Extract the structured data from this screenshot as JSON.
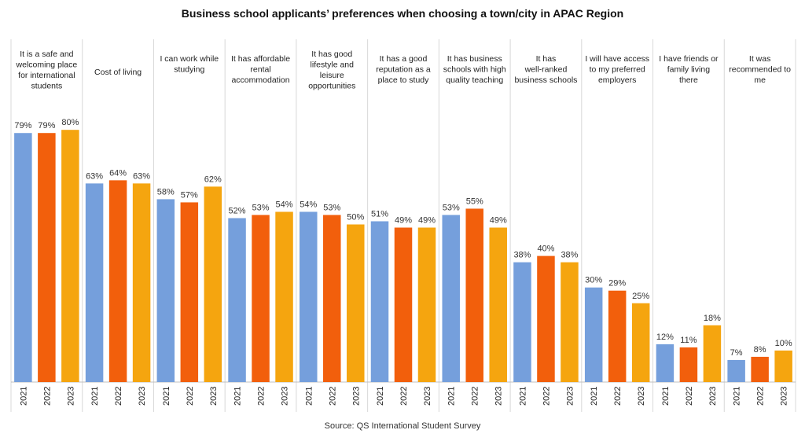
{
  "chart_data": {
    "type": "bar",
    "title": "Business school applicants’ preferences when choosing a town/city in APAC Region",
    "source": "Source: QS International Student Survey",
    "years": [
      "2021",
      "2022",
      "2023"
    ],
    "colors": {
      "2021": "#759fdc",
      "2022": "#f25f0c",
      "2023": "#f5a50f"
    },
    "ylim": [
      0,
      100
    ],
    "value_suffix": "%",
    "categories": [
      {
        "label": "It is a safe and welcoming place for international students",
        "lines": [
          "It is a safe and",
          "welcoming place",
          "for international",
          "students"
        ],
        "values": [
          79,
          79,
          80
        ]
      },
      {
        "label": "Cost of living",
        "lines": [
          "Cost of living"
        ],
        "values": [
          63,
          64,
          63
        ]
      },
      {
        "label": "I can work while studying",
        "lines": [
          "I can work while",
          "studying"
        ],
        "values": [
          58,
          57,
          62
        ]
      },
      {
        "label": "It has affordable rental accommodation",
        "lines": [
          "It has affordable",
          "rental",
          "accommodation"
        ],
        "values": [
          52,
          53,
          54
        ]
      },
      {
        "label": "It has good lifestyle and leisure opportunities",
        "lines": [
          "It has good",
          "lifestyle and",
          "leisure",
          "opportunities"
        ],
        "values": [
          54,
          53,
          50
        ]
      },
      {
        "label": "It has a good reputation as a place to study",
        "lines": [
          "It has a good",
          "reputation as a",
          "place to study"
        ],
        "values": [
          51,
          49,
          49
        ]
      },
      {
        "label": "It has business schools with high quality teaching",
        "lines": [
          "It has business",
          "schools with high",
          "quality teaching"
        ],
        "values": [
          53,
          55,
          49
        ]
      },
      {
        "label": "It has well-ranked business schools",
        "lines": [
          "It has",
          "well-ranked",
          "business schools"
        ],
        "values": [
          38,
          40,
          38
        ]
      },
      {
        "label": "I will have access to my preferred employers",
        "lines": [
          "I will have access",
          "to my preferred",
          "employers"
        ],
        "values": [
          30,
          29,
          25
        ]
      },
      {
        "label": "I have friends or family living there",
        "lines": [
          "I have friends or",
          "family living",
          "there"
        ],
        "values": [
          12,
          11,
          18
        ]
      },
      {
        "label": "It was recommended to me",
        "lines": [
          "It was",
          "recommended to",
          "me"
        ],
        "values": [
          7,
          8,
          10
        ]
      }
    ]
  }
}
